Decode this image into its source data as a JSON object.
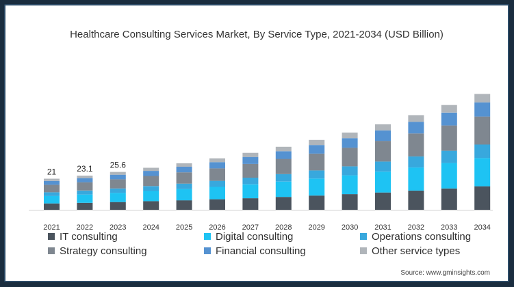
{
  "colors": {
    "it": "#4b545e",
    "digital": "#1ec3f3",
    "operations": "#38a8dd",
    "strategy": "#7f8790",
    "financial": "#5592d1",
    "other": "#b0b5ba"
  },
  "source": "Source: www.gminsights.com",
  "chart_data": {
    "type": "bar",
    "stacked": true,
    "title": "Healthcare Consulting Services Market, By Service Type, 2021-2034 (USD Billion)",
    "xlabel": "",
    "ylabel": "",
    "y_axis_visible": false,
    "grid": false,
    "legend_position": "bottom",
    "categories": [
      "2021",
      "2022",
      "2023",
      "2024",
      "2025",
      "2026",
      "2027",
      "2028",
      "2029",
      "2030",
      "2031",
      "2032",
      "2033",
      "2034"
    ],
    "totals": [
      21,
      23.1,
      25.6,
      28.4,
      31.4,
      34.8,
      38.5,
      42.6,
      47.2,
      52.2,
      57.8,
      64.0,
      70.8,
      78.3
    ],
    "total_labels": [
      "21",
      "23.1",
      "25.6"
    ],
    "ylim": [
      0,
      85
    ],
    "series": [
      {
        "name": "IT consulting",
        "color_key": "it",
        "values": [
          4.3,
          4.7,
          5.2,
          5.8,
          6.4,
          7.1,
          7.8,
          8.7,
          9.6,
          10.6,
          11.7,
          13.0,
          14.4,
          15.9
        ]
      },
      {
        "name": "Digital consulting",
        "color_key": "digital",
        "values": [
          5.0,
          5.6,
          6.2,
          6.9,
          7.6,
          8.4,
          9.4,
          10.4,
          11.5,
          12.7,
          14.1,
          15.6,
          17.2,
          19.0
        ]
      },
      {
        "name": "Operations consulting",
        "color_key": "operations",
        "values": [
          2.5,
          2.7,
          3.0,
          3.3,
          3.7,
          4.1,
          4.5,
          5.0,
          5.5,
          6.1,
          6.8,
          7.5,
          8.3,
          9.2
        ]
      },
      {
        "name": "Strategy consulting",
        "color_key": "strategy",
        "values": [
          5.1,
          5.6,
          6.2,
          6.9,
          7.6,
          8.4,
          9.3,
          10.3,
          11.4,
          12.6,
          14.0,
          15.5,
          17.1,
          18.9
        ]
      },
      {
        "name": "Financial consulting",
        "color_key": "financial",
        "values": [
          2.6,
          2.8,
          3.1,
          3.4,
          3.8,
          4.2,
          4.7,
          5.2,
          5.8,
          6.4,
          7.1,
          7.9,
          8.7,
          9.6
        ]
      },
      {
        "name": "Other service types",
        "color_key": "other",
        "values": [
          1.5,
          1.7,
          1.9,
          2.1,
          2.3,
          2.6,
          2.8,
          3.0,
          3.4,
          3.8,
          4.1,
          4.5,
          5.1,
          5.7
        ]
      }
    ]
  }
}
